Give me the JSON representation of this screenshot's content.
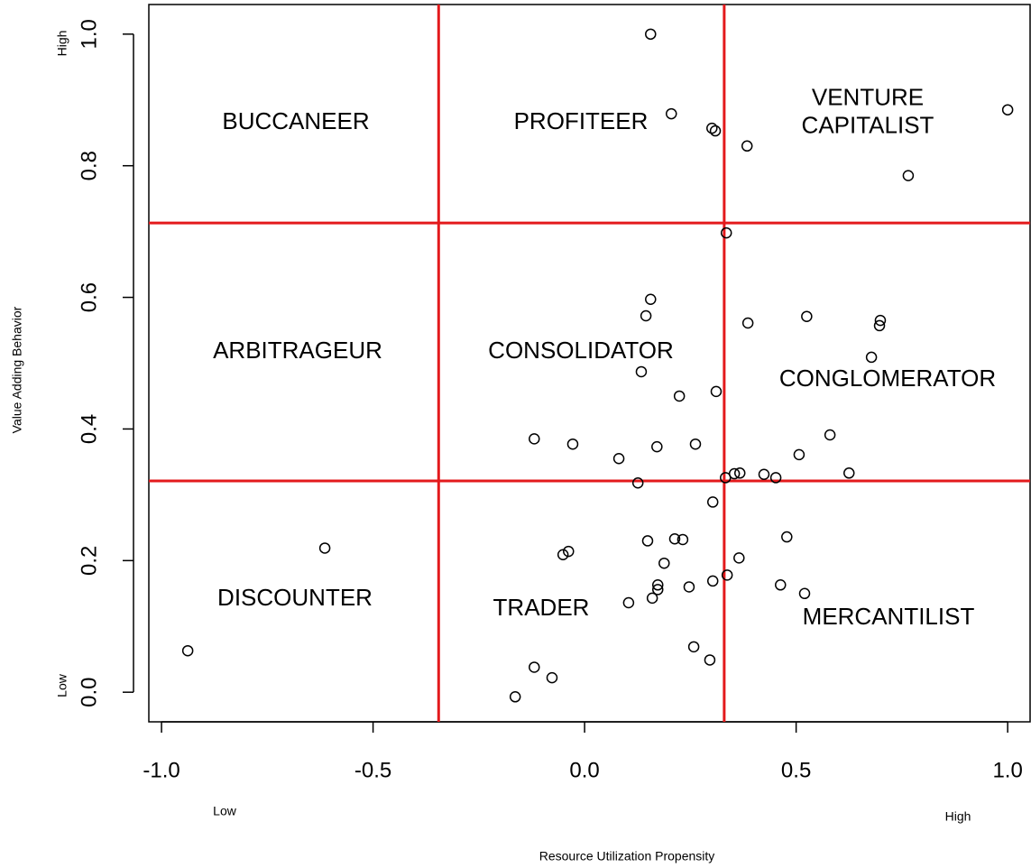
{
  "chart_data": {
    "type": "scatter",
    "x_label": "Resource Utilization Propensity",
    "y_label": "Value Adding Behavior",
    "x_low_label": "Low",
    "x_high_label": "High",
    "y_low_label": "Low",
    "y_high_label": "High",
    "xlim": [
      -1.03,
      1.053
    ],
    "ylim": [
      -0.045,
      1.045
    ],
    "xticks": [
      {
        "value": -1.0,
        "label": "-1.0"
      },
      -0.5,
      {
        "value": 0.0,
        "label": "0.0"
      },
      0.5,
      {
        "value": 1.0,
        "label": "1.0"
      }
    ],
    "yticks": [
      {
        "value": 0.0,
        "label": "0.0"
      },
      0.2,
      0.4,
      0.6,
      0.8,
      {
        "value": 1.0,
        "label": "1.0"
      }
    ],
    "divider_color": "#e31a1c",
    "x_dividers": [
      -0.345,
      0.33
    ],
    "y_dividers": [
      0.321,
      0.713
    ],
    "region_labels": [
      "BUCCANEER",
      "PROFITEER",
      "VENTURE CAPITALIST",
      "ARBITRAGEUR",
      "CONSOLIDATOR",
      "CONGLOMERATOR",
      "DISCOUNTER",
      "TRADER",
      "MERCANTILIST"
    ],
    "color": "#000000",
    "x": [
      0.156,
      0.205,
      0.301,
      0.309,
      0.384,
      1.0,
      0.765,
      0.335,
      0.156,
      0.145,
      0.386,
      0.525,
      0.699,
      0.697,
      0.678,
      0.134,
      0.224,
      0.311,
      -0.119,
      -0.028,
      0.081,
      0.171,
      0.262,
      0.58,
      0.507,
      0.625,
      0.333,
      0.354,
      0.367,
      0.424,
      0.452,
      0.126,
      0.303,
      0.149,
      0.213,
      0.232,
      0.478,
      0.188,
      0.365,
      0.337,
      0.303,
      0.247,
      0.463,
      0.52,
      -0.614,
      -0.038,
      -0.051,
      0.173,
      0.173,
      0.16,
      0.104,
      0.258,
      0.296,
      -0.938,
      -0.119,
      -0.077,
      -0.164
    ],
    "values": [
      1.0,
      0.879,
      0.857,
      0.853,
      0.83,
      0.885,
      0.785,
      0.698,
      0.597,
      0.572,
      0.561,
      0.571,
      0.565,
      0.557,
      0.509,
      0.487,
      0.45,
      0.457,
      0.385,
      0.377,
      0.355,
      0.373,
      0.377,
      0.391,
      0.361,
      0.333,
      0.326,
      0.332,
      0.333,
      0.331,
      0.326,
      0.318,
      0.289,
      0.23,
      0.233,
      0.232,
      0.236,
      0.196,
      0.204,
      0.178,
      0.169,
      0.16,
      0.163,
      0.15,
      0.219,
      0.214,
      0.209,
      0.163,
      0.156,
      0.143,
      0.136,
      0.069,
      0.049,
      0.063,
      0.038,
      0.022,
      -0.007
    ]
  }
}
